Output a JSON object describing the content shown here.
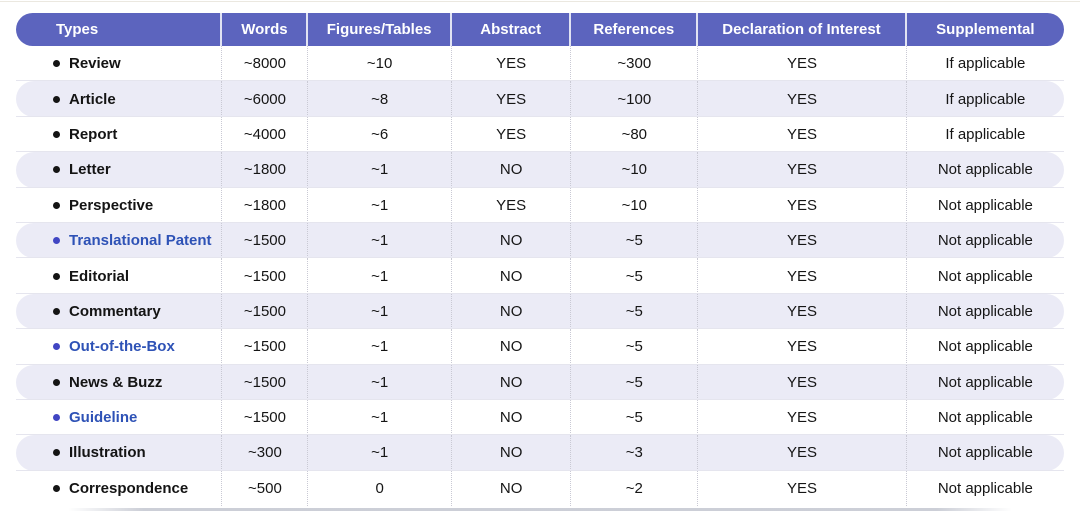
{
  "chart_data": {
    "type": "table",
    "columns": [
      "Types",
      "Words",
      "Figures/Tables",
      "Abstract",
      "References",
      "Declaration of Interest",
      "Supplemental"
    ],
    "rows": [
      {
        "type": "Review",
        "accent": false,
        "values": [
          "~8000",
          "~10",
          "YES",
          "~300",
          "YES",
          "If applicable"
        ]
      },
      {
        "type": "Article",
        "accent": false,
        "values": [
          "~6000",
          "~8",
          "YES",
          "~100",
          "YES",
          "If applicable"
        ]
      },
      {
        "type": "Report",
        "accent": false,
        "values": [
          "~4000",
          "~6",
          "YES",
          "~80",
          "YES",
          "If applicable"
        ]
      },
      {
        "type": "Letter",
        "accent": false,
        "values": [
          "~1800",
          "~1",
          "NO",
          "~10",
          "YES",
          "Not applicable"
        ]
      },
      {
        "type": "Perspective",
        "accent": false,
        "values": [
          "~1800",
          "~1",
          "YES",
          "~10",
          "YES",
          "Not applicable"
        ]
      },
      {
        "type": "Translational Patent",
        "accent": true,
        "values": [
          "~1500",
          "~1",
          "NO",
          "~5",
          "YES",
          "Not applicable"
        ]
      },
      {
        "type": "Editorial",
        "accent": false,
        "values": [
          "~1500",
          "~1",
          "NO",
          "~5",
          "YES",
          "Not applicable"
        ]
      },
      {
        "type": "Commentary",
        "accent": false,
        "values": [
          "~1500",
          "~1",
          "NO",
          "~5",
          "YES",
          "Not applicable"
        ]
      },
      {
        "type": "Out-of-the-Box",
        "accent": true,
        "values": [
          "~1500",
          "~1",
          "NO",
          "~5",
          "YES",
          "Not applicable"
        ]
      },
      {
        "type": "News & Buzz",
        "accent": false,
        "values": [
          "~1500",
          "~1",
          "NO",
          "~5",
          "YES",
          "Not applicable"
        ]
      },
      {
        "type": "Guideline",
        "accent": true,
        "values": [
          "~1500",
          "~1",
          "NO",
          "~5",
          "YES",
          "Not applicable"
        ]
      },
      {
        "type": "Illustration",
        "accent": false,
        "values": [
          "~300",
          "~1",
          "NO",
          "~3",
          "YES",
          "Not applicable"
        ]
      },
      {
        "type": "Correspondence",
        "accent": false,
        "values": [
          "~500",
          "0",
          "NO",
          "~2",
          "YES",
          "Not applicable"
        ]
      }
    ]
  },
  "colors": {
    "header_bg": "#5C64BE",
    "header_text": "#FFFFFF",
    "row_shade": "#EBEBF6",
    "accent_text": "#2E52B6",
    "accent_bullet": "#4146C3",
    "body_text": "#151515"
  }
}
